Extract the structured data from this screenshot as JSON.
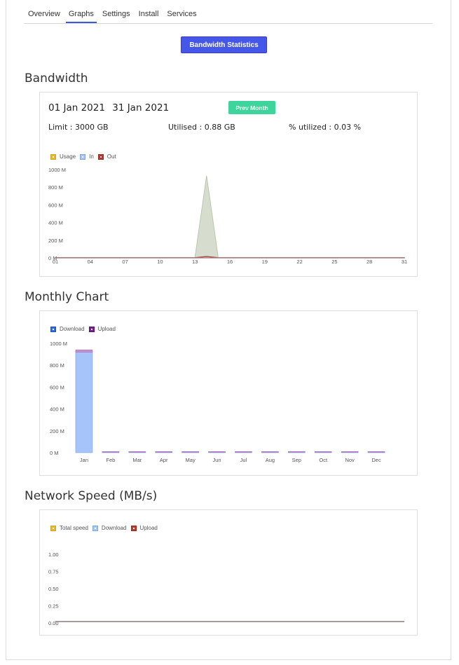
{
  "tabs": [
    {
      "label": "Overview",
      "active": false
    },
    {
      "label": "Graphs",
      "active": true
    },
    {
      "label": "Settings",
      "active": false
    },
    {
      "label": "Install",
      "active": false
    },
    {
      "label": "Services",
      "active": false
    }
  ],
  "bandwidth_stats_button": "Bandwidth Statistics",
  "bandwidth": {
    "title": "Bandwidth",
    "start_date": "01 Jan 2021",
    "end_date": "31 Jan 2021",
    "prev_month_button": "Prev Month",
    "limit": "Limit : 3000 GB",
    "utilised": "Utilised : 0.88 GB",
    "percent_utilized": "% utilized : 0.03 %"
  },
  "monthly": {
    "title": "Monthly Chart"
  },
  "network": {
    "title": "Network Speed (MB/s)"
  },
  "colors": {
    "accent": "#4557e8",
    "green": "#3dd59b",
    "usage": "#e8b939",
    "in": "#a7c7ec",
    "out": "#c0392b",
    "download": "#2f6fe0",
    "upload": "#7a1f8f"
  },
  "chart_data": [
    {
      "type": "area",
      "legend": [
        "Usage",
        "In",
        "Out"
      ],
      "x_ticks": [
        "01",
        "04",
        "07",
        "10",
        "13",
        "16",
        "19",
        "22",
        "25",
        "28",
        "31"
      ],
      "y_ticks": [
        "0 M",
        "200 M",
        "400 M",
        "600 M",
        "800 M",
        "1000 M"
      ],
      "ylim": [
        0,
        1000
      ],
      "x": [
        1,
        2,
        3,
        4,
        5,
        6,
        7,
        8,
        9,
        10,
        11,
        12,
        13,
        14,
        15,
        16,
        17,
        18,
        19,
        20,
        21,
        22,
        23,
        24,
        25,
        26,
        27,
        28,
        29,
        30,
        31
      ],
      "series": [
        {
          "name": "Usage",
          "values": [
            5,
            5,
            5,
            5,
            5,
            5,
            5,
            5,
            5,
            5,
            5,
            5,
            5,
            930,
            5,
            5,
            5,
            5,
            5,
            5,
            5,
            5,
            5,
            5,
            5,
            5,
            5,
            5,
            5,
            5,
            5
          ]
        },
        {
          "name": "In",
          "values": [
            3,
            3,
            3,
            3,
            3,
            3,
            3,
            3,
            3,
            3,
            3,
            3,
            3,
            20,
            3,
            3,
            3,
            3,
            3,
            3,
            3,
            3,
            3,
            3,
            3,
            3,
            3,
            3,
            3,
            3,
            3
          ]
        },
        {
          "name": "Out",
          "values": [
            2,
            2,
            2,
            2,
            2,
            2,
            2,
            2,
            2,
            2,
            2,
            2,
            2,
            15,
            2,
            2,
            2,
            2,
            2,
            2,
            2,
            2,
            2,
            2,
            2,
            2,
            2,
            2,
            2,
            2,
            2
          ]
        }
      ]
    },
    {
      "type": "bar",
      "legend": [
        "Download",
        "Upload"
      ],
      "categories": [
        "Jan",
        "Feb",
        "Mar",
        "Apr",
        "May",
        "Jun",
        "Jul",
        "Aug",
        "Sep",
        "Oct",
        "Nov",
        "Dec"
      ],
      "y_ticks": [
        "0 M",
        "200 M",
        "400 M",
        "600 M",
        "800 M",
        "1000 M"
      ],
      "ylim": [
        0,
        1000
      ],
      "series": [
        {
          "name": "Download",
          "values": [
            920,
            5,
            5,
            5,
            5,
            5,
            5,
            5,
            5,
            5,
            5,
            5
          ]
        },
        {
          "name": "Upload",
          "values": [
            20,
            5,
            5,
            5,
            5,
            5,
            5,
            5,
            5,
            5,
            5,
            5
          ]
        }
      ]
    },
    {
      "type": "line",
      "legend": [
        "Total speed",
        "Download",
        "Upload"
      ],
      "y_ticks": [
        "0.00",
        "0.25",
        "0.50",
        "0.75",
        "1.00"
      ],
      "ylim": [
        0,
        1
      ],
      "series": [
        {
          "name": "Total speed",
          "values": [
            0.02,
            0.02,
            0.02,
            0.02,
            0.02,
            0.02,
            0.02,
            0.02,
            0.02,
            0.02
          ]
        },
        {
          "name": "Download",
          "values": [
            0.02,
            0.02,
            0.02,
            0.02,
            0.02,
            0.02,
            0.02,
            0.02,
            0.02,
            0.02
          ]
        },
        {
          "name": "Upload",
          "values": [
            0.02,
            0.02,
            0.02,
            0.02,
            0.02,
            0.02,
            0.02,
            0.02,
            0.02,
            0.02
          ]
        }
      ]
    }
  ]
}
